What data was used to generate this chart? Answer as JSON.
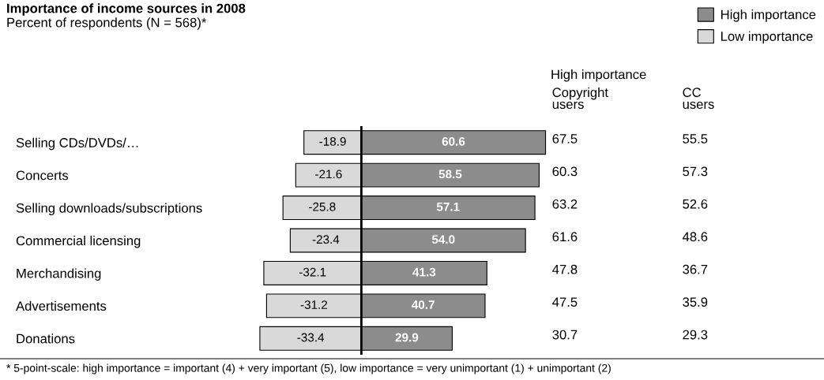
{
  "chart_data": [
    {
      "type": "bar",
      "title": "Importance of income sources in 2008",
      "subtitle": "Percent of respondents (N = 568)*",
      "orientation": "horizontal",
      "stacked": true,
      "categories": [
        "Selling CDs/DVDs/…",
        "Concerts",
        "Selling downloads/subscriptions",
        "Commercial licensing",
        "Merchandising",
        "Advertisements",
        "Donations"
      ],
      "series": [
        {
          "name": "High importance",
          "color": "#8c8c8c",
          "values": [
            60.6,
            58.5,
            57.1,
            54.0,
            41.3,
            40.7,
            29.9
          ],
          "value_labels": [
            "60.6",
            "58.5",
            "57.1",
            "54.0",
            "41.3",
            "40.7",
            "29.9"
          ]
        },
        {
          "name": "Low importance",
          "color": "#d9d9d9",
          "values": [
            -18.9,
            -21.6,
            -25.8,
            -23.4,
            -32.1,
            -31.2,
            -33.4
          ],
          "value_labels": [
            "-18.9",
            "-21.6",
            "-25.8",
            "-23.4",
            "-32.1",
            "-31.2",
            "-33.4"
          ]
        }
      ],
      "tick_labels": "y",
      "legend": "top right",
      "ref_lines": [
        {
          "axis": "x",
          "value": 0,
          "color": "#000000"
        }
      ],
      "annotations": [
        "* 5-point-scale: high importance = important (4) + very important (5), low importance = very unimportant (1) + unimportant (2)"
      ]
    },
    {
      "type": "other",
      "title": "High importance",
      "annotations": [
        "Copyright\nusers",
        "CC\nusers",
        "67.5",
        "55.5",
        "60.3",
        "57.3",
        "63.2",
        "52.6",
        "61.6",
        "48.6",
        "47.8",
        "36.7",
        "47.5",
        "35.9",
        "30.7",
        "29.3"
      ]
    }
  ]
}
